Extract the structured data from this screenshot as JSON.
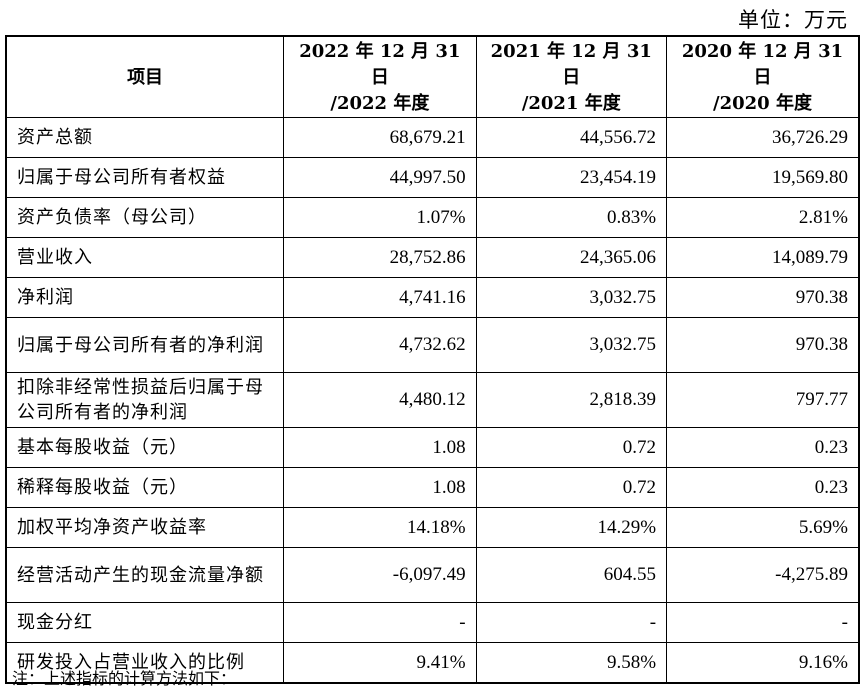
{
  "unit_label": "单位：万元",
  "header": {
    "item": "项目",
    "col1_line1": "2022 年 12 月 31 日",
    "col1_line2": "/2022 年度",
    "col2_line1": "2021 年 12 月 31 日",
    "col2_line2": "/2021 年度",
    "col3_line1": "2020 年 12 月 31 日",
    "col3_line2": "/2020 年度"
  },
  "rows": [
    {
      "label": "资产总额",
      "v2022": "68,679.21",
      "v2021": "44,556.72",
      "v2020": "36,726.29"
    },
    {
      "label": "归属于母公司所有者权益",
      "v2022": "44,997.50",
      "v2021": "23,454.19",
      "v2020": "19,569.80"
    },
    {
      "label": "资产负债率（母公司）",
      "v2022": "1.07%",
      "v2021": "0.83%",
      "v2020": "2.81%"
    },
    {
      "label": "营业收入",
      "v2022": "28,752.86",
      "v2021": "24,365.06",
      "v2020": "14,089.79"
    },
    {
      "label": "净利润",
      "v2022": "4,741.16",
      "v2021": "3,032.75",
      "v2020": "970.38"
    },
    {
      "label": "归属于母公司所有者的净利润",
      "v2022": "4,732.62",
      "v2021": "3,032.75",
      "v2020": "970.38"
    },
    {
      "label": "扣除非经常性损益后归属于母公司所有者的净利润",
      "v2022": "4,480.12",
      "v2021": "2,818.39",
      "v2020": "797.77"
    },
    {
      "label": "基本每股收益（元）",
      "v2022": "1.08",
      "v2021": "0.72",
      "v2020": "0.23"
    },
    {
      "label": "稀释每股收益（元）",
      "v2022": "1.08",
      "v2021": "0.72",
      "v2020": "0.23"
    },
    {
      "label": "加权平均净资产收益率",
      "v2022": "14.18%",
      "v2021": "14.29%",
      "v2020": "5.69%"
    },
    {
      "label": "经营活动产生的现金流量净额",
      "v2022": "-6,097.49",
      "v2021": "604.55",
      "v2020": "-4,275.89"
    },
    {
      "label": "现金分红",
      "v2022": "-",
      "v2021": "-",
      "v2020": "-"
    },
    {
      "label": "研发投入占营业收入的比例",
      "v2022": "9.41%",
      "v2021": "9.58%",
      "v2020": "9.16%"
    }
  ],
  "footnote": "注：上述指标的计算方法如下："
}
